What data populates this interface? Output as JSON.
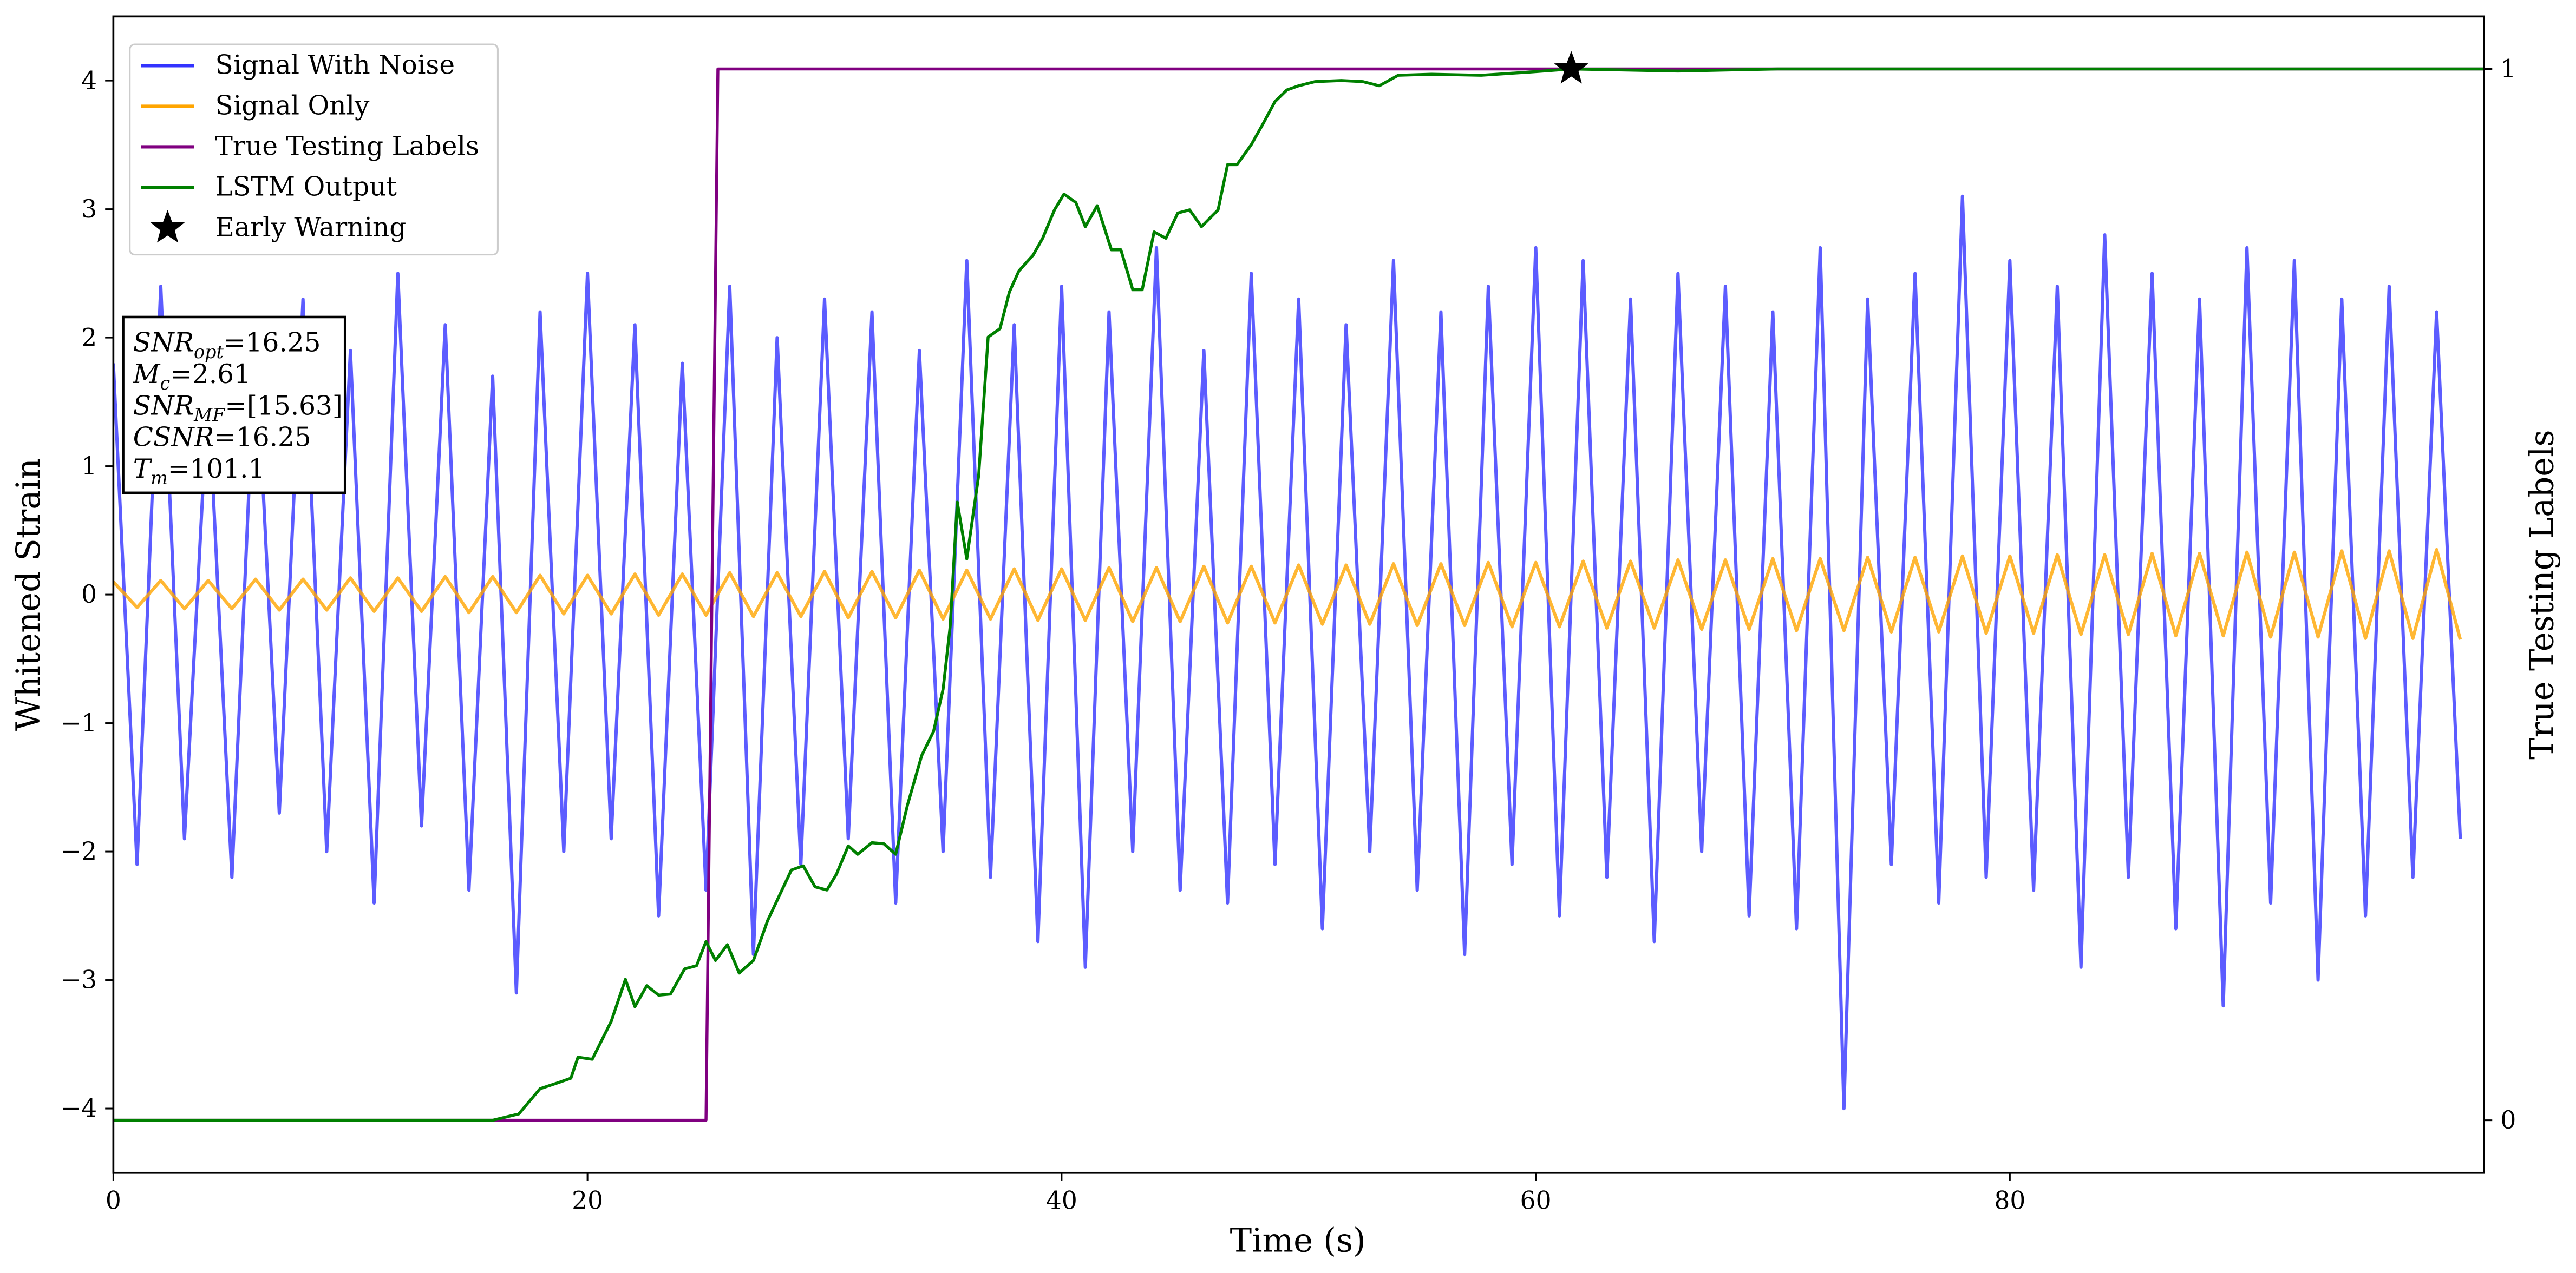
{
  "chart_data": {
    "type": "line",
    "xlabel": "Time (s)",
    "ylabel": "Whitened Strain",
    "y2label": "True Testing Labels",
    "xlim": [
      0,
      100
    ],
    "ylim": [
      -4.5,
      4.5
    ],
    "y2lim": [
      -0.05,
      1.05
    ],
    "xticks": [
      0,
      20,
      40,
      60,
      80
    ],
    "yticks": [
      {
        "value": -4,
        "label": "−4"
      },
      {
        "value": -3,
        "label": "−3"
      },
      {
        "value": -2,
        "label": "−2"
      },
      {
        "value": -1,
        "label": "−1"
      },
      0,
      1,
      2,
      3,
      4
    ],
    "y2ticks": [
      0,
      1
    ],
    "grid": false,
    "legend": "upper left",
    "series": [
      {
        "name": "Signal With Noise",
        "color": "#3333ff",
        "x": [
          0,
          1,
          2,
          3,
          4,
          5,
          6,
          7,
          8,
          9,
          10,
          11,
          12,
          13,
          14,
          15,
          16,
          17,
          18,
          19,
          20,
          21,
          22,
          23,
          24,
          25,
          26,
          27,
          28,
          29,
          30,
          31,
          32,
          33,
          34,
          35,
          36,
          37,
          38,
          39,
          40,
          41,
          42,
          43,
          44,
          45,
          46,
          47,
          48,
          49,
          50,
          51,
          52,
          53,
          54,
          55,
          56,
          57,
          58,
          59,
          60,
          61,
          62,
          63,
          64,
          65,
          66,
          67,
          68,
          69,
          70,
          71,
          72,
          73,
          74,
          75,
          76,
          77,
          78,
          79,
          80,
          81,
          82,
          83,
          84,
          85,
          86,
          87,
          88,
          89,
          90,
          91,
          92,
          93,
          94,
          95,
          96,
          97,
          98,
          99
        ],
        "values": [
          1.8,
          -2.1,
          2.4,
          -1.9,
          1.6,
          -2.2,
          2.0,
          -1.7,
          2.3,
          -2.0,
          1.9,
          -2.4,
          2.5,
          -1.8,
          2.1,
          -2.3,
          1.7,
          -3.1,
          2.2,
          -2.0,
          2.5,
          -1.9,
          2.1,
          -2.5,
          1.8,
          -2.3,
          2.4,
          -2.8,
          2.0,
          -2.1,
          2.3,
          -1.9,
          2.2,
          -2.4,
          1.9,
          -2.0,
          2.6,
          -2.2,
          2.1,
          -2.7,
          2.4,
          -2.9,
          2.2,
          -2.0,
          2.7,
          -2.3,
          1.9,
          -2.4,
          2.5,
          -2.1,
          2.3,
          -2.6,
          2.1,
          -2.0,
          2.6,
          -2.3,
          2.2,
          -2.8,
          2.4,
          -2.1,
          2.7,
          -2.5,
          2.6,
          -2.2,
          2.3,
          -2.7,
          2.5,
          -2.0,
          2.4,
          -2.5,
          2.2,
          -2.6,
          2.7,
          -4.0,
          2.3,
          -2.1,
          2.5,
          -2.4,
          3.1,
          -2.2,
          2.6,
          -2.3,
          2.4,
          -2.9,
          2.8,
          -2.2,
          2.5,
          -2.6,
          2.3,
          -3.2,
          2.7,
          -2.4,
          2.6,
          -3.0,
          2.3,
          -2.5,
          2.4,
          -2.2,
          2.2,
          -1.9
        ]
      },
      {
        "name": "Signal Only",
        "color": "orange",
        "x": [
          0,
          1,
          2,
          3,
          4,
          5,
          6,
          7,
          8,
          9,
          10,
          11,
          12,
          13,
          14,
          15,
          16,
          17,
          18,
          19,
          20,
          21,
          22,
          23,
          24,
          25,
          26,
          27,
          28,
          29,
          30,
          31,
          32,
          33,
          34,
          35,
          36,
          37,
          38,
          39,
          40,
          41,
          42,
          43,
          44,
          45,
          46,
          47,
          48,
          49,
          50,
          51,
          52,
          53,
          54,
          55,
          56,
          57,
          58,
          59,
          60,
          61,
          62,
          63,
          64,
          65,
          66,
          67,
          68,
          69,
          70,
          71,
          72,
          73,
          74,
          75,
          76,
          77,
          78,
          79,
          80,
          81,
          82,
          83,
          84,
          85,
          86,
          87,
          88,
          89,
          90,
          91,
          92,
          93,
          94,
          95,
          96,
          97,
          98,
          99
        ],
        "values": [
          0.1,
          -0.1,
          0.11,
          -0.11,
          0.11,
          -0.11,
          0.12,
          -0.12,
          0.12,
          -0.12,
          0.13,
          -0.13,
          0.13,
          -0.13,
          0.14,
          -0.14,
          0.14,
          -0.14,
          0.15,
          -0.15,
          0.15,
          -0.15,
          0.16,
          -0.16,
          0.16,
          -0.16,
          0.17,
          -0.17,
          0.17,
          -0.17,
          0.18,
          -0.18,
          0.18,
          -0.18,
          0.19,
          -0.19,
          0.19,
          -0.19,
          0.2,
          -0.2,
          0.2,
          -0.2,
          0.21,
          -0.21,
          0.21,
          -0.21,
          0.22,
          -0.22,
          0.22,
          -0.22,
          0.23,
          -0.23,
          0.23,
          -0.23,
          0.24,
          -0.24,
          0.24,
          -0.24,
          0.25,
          -0.25,
          0.25,
          -0.25,
          0.26,
          -0.26,
          0.26,
          -0.26,
          0.27,
          -0.27,
          0.27,
          -0.27,
          0.28,
          -0.28,
          0.28,
          -0.28,
          0.29,
          -0.29,
          0.29,
          -0.29,
          0.3,
          -0.3,
          0.3,
          -0.3,
          0.31,
          -0.31,
          0.31,
          -0.31,
          0.32,
          -0.32,
          0.32,
          -0.32,
          0.33,
          -0.33,
          0.33,
          -0.33,
          0.34,
          -0.34,
          0.34,
          -0.34,
          0.35,
          -0.35
        ]
      },
      {
        "name": "True Testing Labels",
        "color": "purple",
        "axis": "y2",
        "x": [
          0,
          25,
          25.5,
          100
        ],
        "values": [
          0,
          0,
          1,
          1
        ]
      },
      {
        "name": "LSTM Output",
        "color": "green",
        "axis": "y2",
        "x": [
          0,
          16.0,
          17.1,
          18.0,
          18.8,
          19.3,
          19.6,
          20.2,
          21,
          21.6,
          22,
          22.5,
          23,
          23.5,
          24.1,
          24.6,
          25,
          25.4,
          25.9,
          26.4,
          27,
          27.6,
          28.1,
          28.6,
          29.1,
          29.6,
          30.1,
          30.5,
          31,
          31.4,
          32,
          32.5,
          33,
          33.5,
          34.1,
          34.6,
          35,
          35.3,
          35.6,
          36,
          36.5,
          36.9,
          37.4,
          37.8,
          38.2,
          38.8,
          39.2,
          39.7,
          40.1,
          40.6,
          41,
          41.5,
          42.1,
          42.5,
          43,
          43.4,
          43.9,
          44.4,
          44.9,
          45.4,
          45.9,
          46.6,
          47,
          47.4,
          48,
          48.5,
          49,
          49.5,
          50,
          50.7,
          51.8,
          52.7,
          53.4,
          54.2,
          55.6,
          57.7,
          59.7,
          61.5,
          66,
          70.2,
          100
        ],
        "values": [
          0,
          0,
          0.006,
          0.03,
          0.036,
          0.04,
          0.06,
          0.058,
          0.094,
          0.134,
          0.108,
          0.128,
          0.119,
          0.12,
          0.144,
          0.147,
          0.17,
          0.152,
          0.167,
          0.14,
          0.152,
          0.19,
          0.214,
          0.238,
          0.242,
          0.222,
          0.219,
          0.234,
          0.261,
          0.253,
          0.264,
          0.263,
          0.253,
          0.3,
          0.347,
          0.37,
          0.41,
          0.47,
          0.588,
          0.534,
          0.613,
          0.745,
          0.753,
          0.788,
          0.808,
          0.823,
          0.839,
          0.866,
          0.881,
          0.873,
          0.85,
          0.87,
          0.828,
          0.828,
          0.79,
          0.79,
          0.845,
          0.839,
          0.863,
          0.866,
          0.85,
          0.866,
          0.909,
          0.909,
          0.928,
          0.948,
          0.969,
          0.98,
          0.984,
          0.988,
          0.989,
          0.988,
          0.984,
          0.994,
          0.995,
          0.994,
          0.997,
          1.0,
          0.998,
          1.0,
          1.0
        ]
      },
      {
        "name": "Early Warning",
        "color": "black",
        "axis": "y2",
        "marker": "star",
        "x": [
          61.5
        ],
        "values": [
          1.0
        ]
      }
    ],
    "annotation": [
      {
        "symbol": "SNR",
        "subscript": "opt",
        "text": "=16.25"
      },
      {
        "symbol": "M",
        "subscript": "c",
        "text": "=2.61"
      },
      {
        "symbol": "SNR",
        "subscript": "MF",
        "text": "=[15.63]"
      },
      {
        "symbol": "CSNR",
        "text": "=16.25"
      },
      {
        "symbol": "T",
        "subscript": "m",
        "text": "=101.1"
      }
    ]
  }
}
